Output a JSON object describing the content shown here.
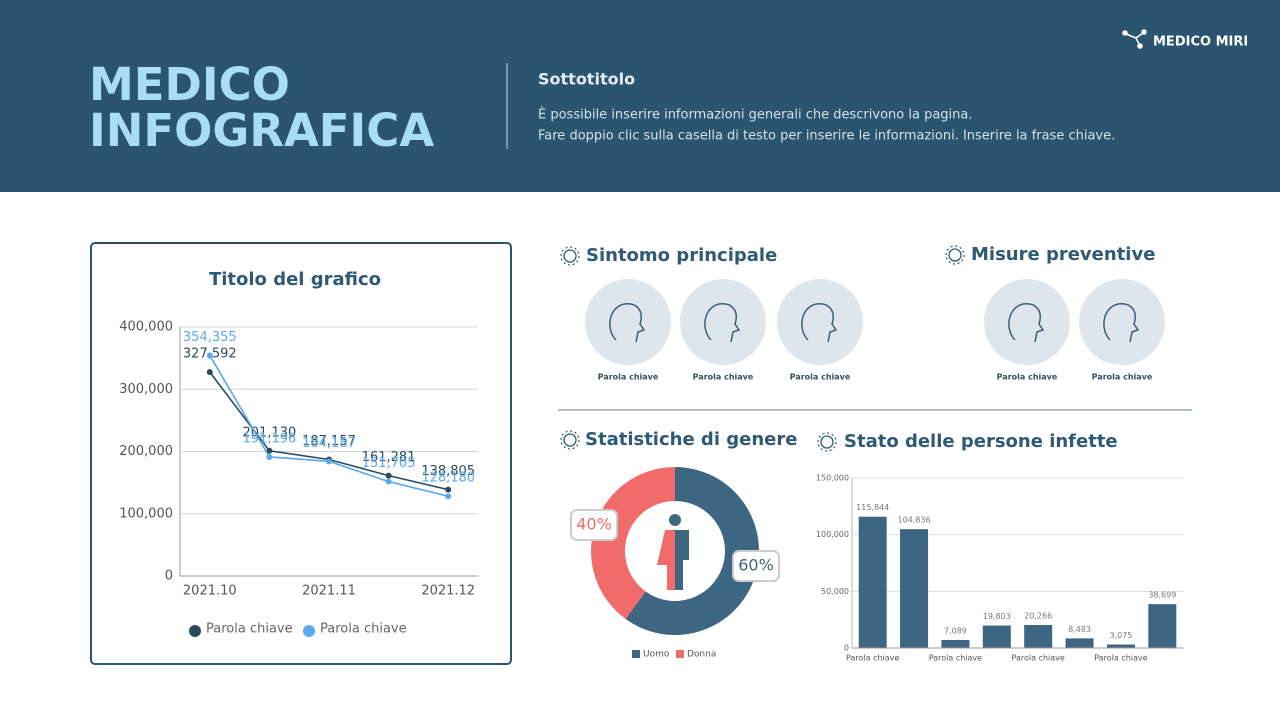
{
  "header": {
    "brand": "MEDICO MIRI",
    "title": [
      "MEDICO",
      "INFOGRAFICA"
    ],
    "subtitle": "Sottotitolo",
    "description": [
      "È possibile inserire informazioni generali che descrivono la pagina.",
      "Fare doppio clic sulla casella di testo per inserire le informazioni. Inserire la frase chiave."
    ]
  },
  "sections": [
    {
      "title": "Sintomo principale",
      "items": [
        "Parola chiave",
        "Parola chiave",
        "Parola chiave"
      ]
    },
    {
      "title": "Misure preventive",
      "items": [
        "Parola chiave",
        "Parola chiave"
      ]
    }
  ],
  "chart_data": [
    {
      "type": "line",
      "title": "Titolo del grafico",
      "categories": [
        "2021.10",
        null,
        "2021.11",
        null,
        "2021.12"
      ],
      "series": [
        {
          "name": "Parola chiave",
          "color": "#2c4a5e",
          "values": [
            327592,
            201130,
            187157,
            161281,
            138805
          ],
          "value_labels": [
            "327,592",
            "201,130",
            "187,157",
            "161,281",
            "138,805"
          ]
        },
        {
          "name": "Parola chiave",
          "color": "#5aa8f0",
          "values": [
            354355,
            191196,
            184187,
            151705,
            128180
          ],
          "value_labels": [
            "354,355",
            "191,196",
            "184,187",
            "151,705",
            "128,180"
          ]
        }
      ],
      "ylim": [
        0,
        400000
      ],
      "yticks": [
        0,
        {
          "value": 100000,
          "label": "100,000"
        },
        {
          "value": 200000,
          "label": "200,000"
        },
        {
          "value": 300000,
          "label": "300,000"
        },
        {
          "value": 400000,
          "label": "400,000"
        }
      ],
      "grid": true,
      "legend": "bottom"
    },
    {
      "type": "donut",
      "title": "Statistiche di genere",
      "categories": [
        "Uomo",
        "Donna"
      ],
      "values": [
        60,
        40
      ],
      "value_labels": [
        "60%",
        "40%"
      ],
      "colors": [
        "#3d6682",
        "#f26b6b"
      ],
      "legend": "bottom"
    },
    {
      "type": "bar",
      "title": "Stato delle persone infette",
      "categories": [
        "Parola chiave",
        null,
        "Parola chiave",
        null,
        "Parola chiave",
        null,
        "Parola chiave",
        null
      ],
      "values": [
        115844,
        104836,
        7089,
        19803,
        20266,
        8483,
        3075,
        38699
      ],
      "value_labels": [
        "115,844",
        "104,836",
        "7,089",
        "19,803",
        "20,266",
        "8,483",
        "3,075",
        "38,699"
      ],
      "color": "#3d6682",
      "ylim": [
        0,
        150000
      ],
      "yticks": [
        0,
        {
          "value": 50000,
          "label": "50,000"
        },
        {
          "value": 100000,
          "label": "100,000"
        },
        {
          "value": 150000,
          "label": "150,000"
        }
      ],
      "grid": true
    }
  ]
}
